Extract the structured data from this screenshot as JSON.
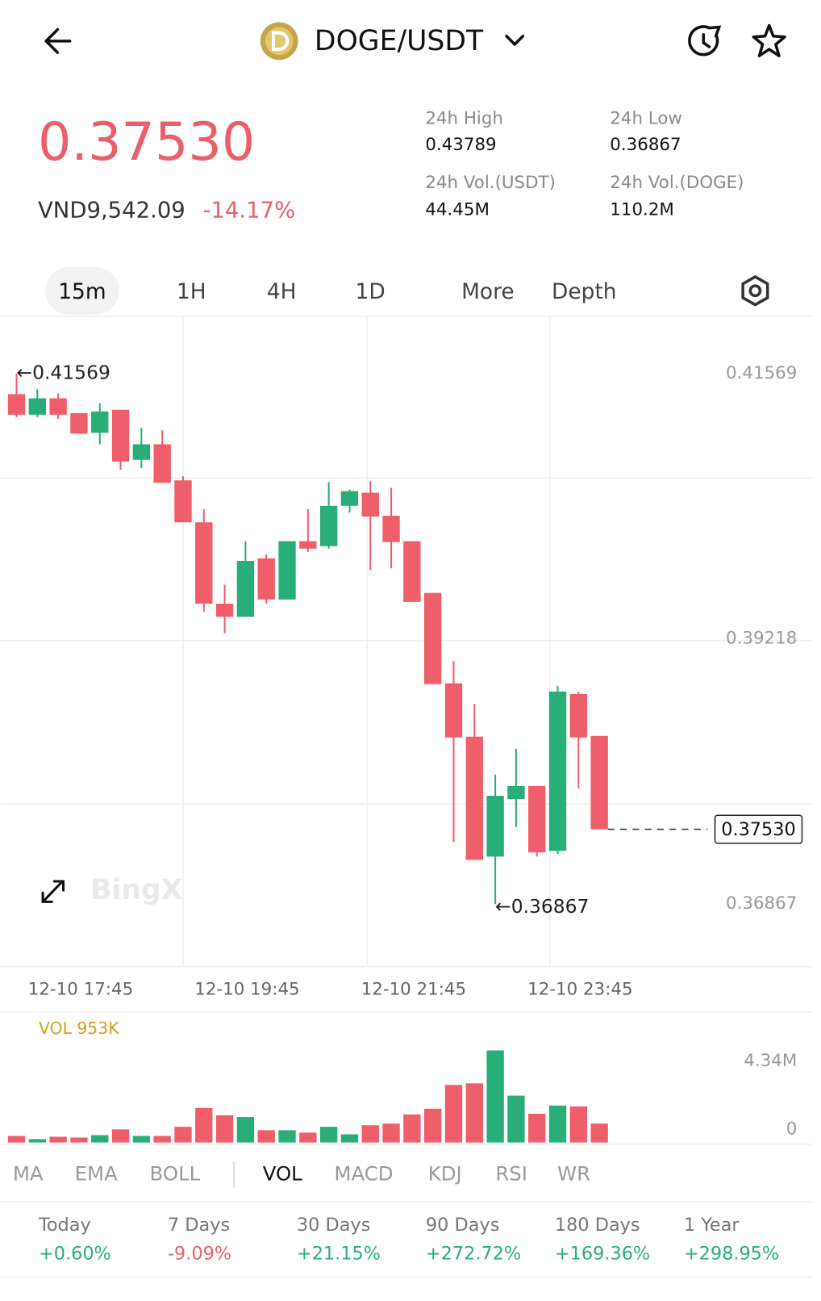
{
  "header": {
    "title": "DOGE/USDT"
  },
  "ticker": {
    "price": "0.37530",
    "fiat": "VND9,542.09",
    "change": "-14.17%",
    "stats": [
      {
        "label": "24h High",
        "value": "0.43789"
      },
      {
        "label": "24h Low",
        "value": "0.36867"
      },
      {
        "label": "24h Vol.(USDT)",
        "value": "44.45M"
      },
      {
        "label": "24h Vol.(DOGE)",
        "value": "110.2M"
      }
    ]
  },
  "timeframes": [
    "15m",
    "1H",
    "4H",
    "1D",
    "More",
    "Depth"
  ],
  "chart_data": [
    {
      "type": "candlestick",
      "watermark": "BingX",
      "up_color": "#2aae78",
      "down_color": "#ef5f6b",
      "categories": [
        null,
        null,
        null,
        "12-10 17:45",
        null,
        null,
        null,
        null,
        null,
        null,
        null,
        "12-10 19:45",
        null,
        null,
        null,
        null,
        null,
        null,
        null,
        "12-10 21:45",
        null,
        null,
        null,
        null,
        null,
        null,
        null,
        "12-10 23:45",
        null
      ],
      "open": [
        0.41387,
        0.41205,
        0.4135,
        0.41219,
        0.41045,
        0.41249,
        0.40805,
        0.40943,
        0.40623,
        0.40251,
        0.3953,
        0.39414,
        0.39931,
        0.39567,
        0.40084,
        0.4004,
        0.40397,
        0.40513,
        0.40309,
        0.40084,
        0.39625,
        0.38824,
        0.38351,
        0.37288,
        0.37798,
        0.37914,
        0.37339,
        0.38729,
        0.38358
      ],
      "high": [
        0.41569,
        0.41431,
        0.41394,
        0.41219,
        0.41307,
        0.41249,
        0.41089,
        0.41067,
        0.40659,
        0.40368,
        0.39698,
        0.40084,
        0.39967,
        0.40084,
        0.40368,
        0.40608,
        0.40542,
        0.40615,
        0.40557,
        0.40084,
        0.39625,
        0.39021,
        0.38642,
        0.38016,
        0.38242,
        0.37914,
        0.38802,
        0.38751,
        0.38358
      ],
      "low": [
        0.41183,
        0.41183,
        0.41168,
        0.41037,
        0.40943,
        0.40717,
        0.40732,
        0.40601,
        0.40251,
        0.39458,
        0.39268,
        0.39414,
        0.3953,
        0.39567,
        0.39989,
        0.40018,
        0.40339,
        0.39829,
        0.39843,
        0.39545,
        0.38817,
        0.37419,
        0.37259,
        0.36867,
        0.3755,
        0.37288,
        0.3731,
        0.37892,
        0.3753
      ],
      "close": [
        0.41205,
        0.4135,
        0.41205,
        0.41037,
        0.41234,
        0.4079,
        0.40943,
        0.40601,
        0.40251,
        0.3953,
        0.39414,
        0.39909,
        0.39567,
        0.40084,
        0.40018,
        0.40397,
        0.40528,
        0.40302,
        0.40076,
        0.39545,
        0.38817,
        0.38344,
        0.37259,
        0.37827,
        0.37914,
        0.37325,
        0.38751,
        0.38344,
        0.3753
      ],
      "ylim": [
        0.36312,
        0.42078
      ],
      "yticks": [
        0.41569,
        0.39218,
        0.36867
      ],
      "annotations": {
        "high": "←0.41569",
        "low": "←0.36867",
        "last": "0.37530"
      }
    },
    {
      "type": "bar",
      "title": "VOL 953K",
      "values": [
        0.33,
        0.17,
        0.29,
        0.25,
        0.37,
        0.66,
        0.33,
        0.33,
        0.79,
        1.74,
        1.37,
        1.28,
        0.62,
        0.62,
        0.5,
        0.79,
        0.41,
        0.87,
        0.95,
        1.41,
        1.7,
        2.9,
        2.98,
        4.64,
        2.36,
        1.45,
        1.86,
        1.82,
        0.953
      ],
      "ylim": [
        0,
        5.34
      ],
      "yticks": [
        {
          "value": 4.34,
          "label": "4.34M"
        },
        0
      ]
    }
  ],
  "indicators": [
    "MA",
    "EMA",
    "BOLL",
    "VOL",
    "MACD",
    "KDJ",
    "RSI",
    "WR"
  ],
  "performance": [
    {
      "label": "Today",
      "value": "+0.60%"
    },
    {
      "label": "7 Days",
      "value": "-9.09%"
    },
    {
      "label": "30 Days",
      "value": "+21.15%"
    },
    {
      "label": "90 Days",
      "value": "+272.72%"
    },
    {
      "label": "180 Days",
      "value": "+169.36%"
    },
    {
      "label": "1 Year",
      "value": "+298.95%"
    }
  ]
}
